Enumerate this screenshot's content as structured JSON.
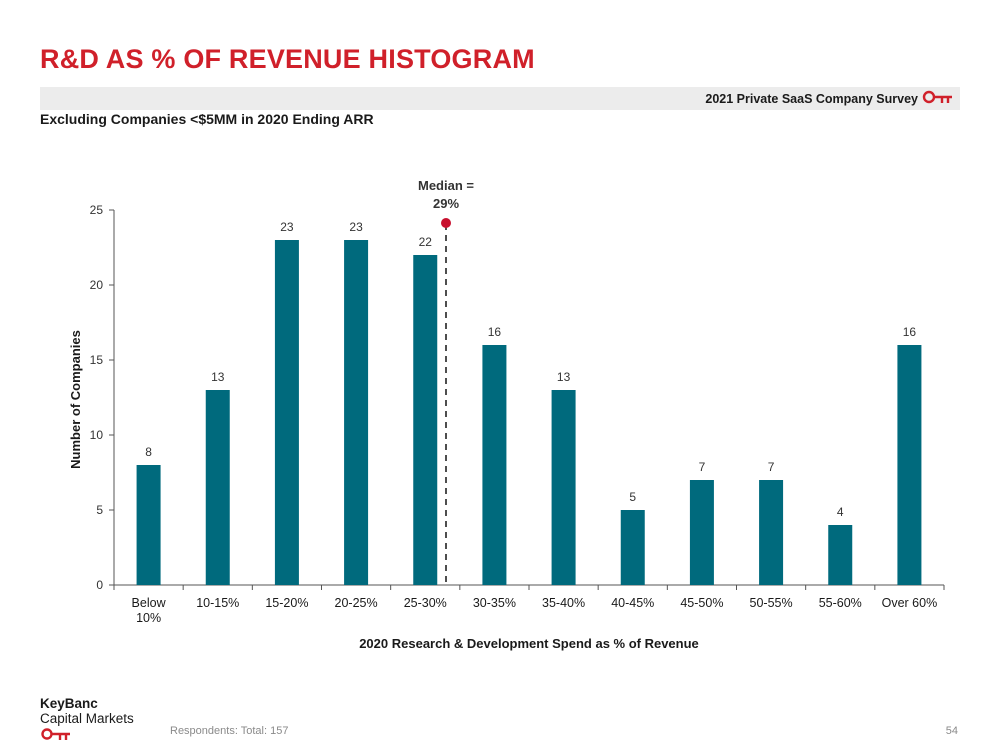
{
  "header": {
    "title": "R&D AS % OF REVENUE HISTOGRAM",
    "survey_label": "2021 Private SaaS Company Survey",
    "subtitle": "Excluding Companies <$5MM in 2020 Ending ARR"
  },
  "footer": {
    "logo_line1": "KeyBanc",
    "logo_line2": "Capital Markets",
    "respondents": "Respondents: Total: 157",
    "page_number": "54"
  },
  "colors": {
    "accent": "#d0202a",
    "bar": "#006a7d",
    "median_marker": "#c8102e"
  },
  "icons": [
    "key-icon"
  ],
  "chart_data": {
    "type": "bar",
    "categories": [
      "Below 10%",
      "10-15%",
      "15-20%",
      "20-25%",
      "25-30%",
      "30-35%",
      "35-40%",
      "40-45%",
      "45-50%",
      "50-55%",
      "55-60%",
      "Over 60%"
    ],
    "values": [
      8,
      13,
      23,
      23,
      22,
      16,
      13,
      5,
      7,
      7,
      4,
      16
    ],
    "xlabel": "2020 Research & Development Spend as % of Revenue",
    "ylabel": "Number of Companies",
    "ylim": [
      0,
      25
    ],
    "yticks": [
      0,
      5,
      10,
      15,
      20,
      25
    ],
    "grid": false,
    "data_labels": true,
    "median": {
      "value": 29,
      "label_line1": "Median =",
      "label_line2": "29%"
    }
  }
}
